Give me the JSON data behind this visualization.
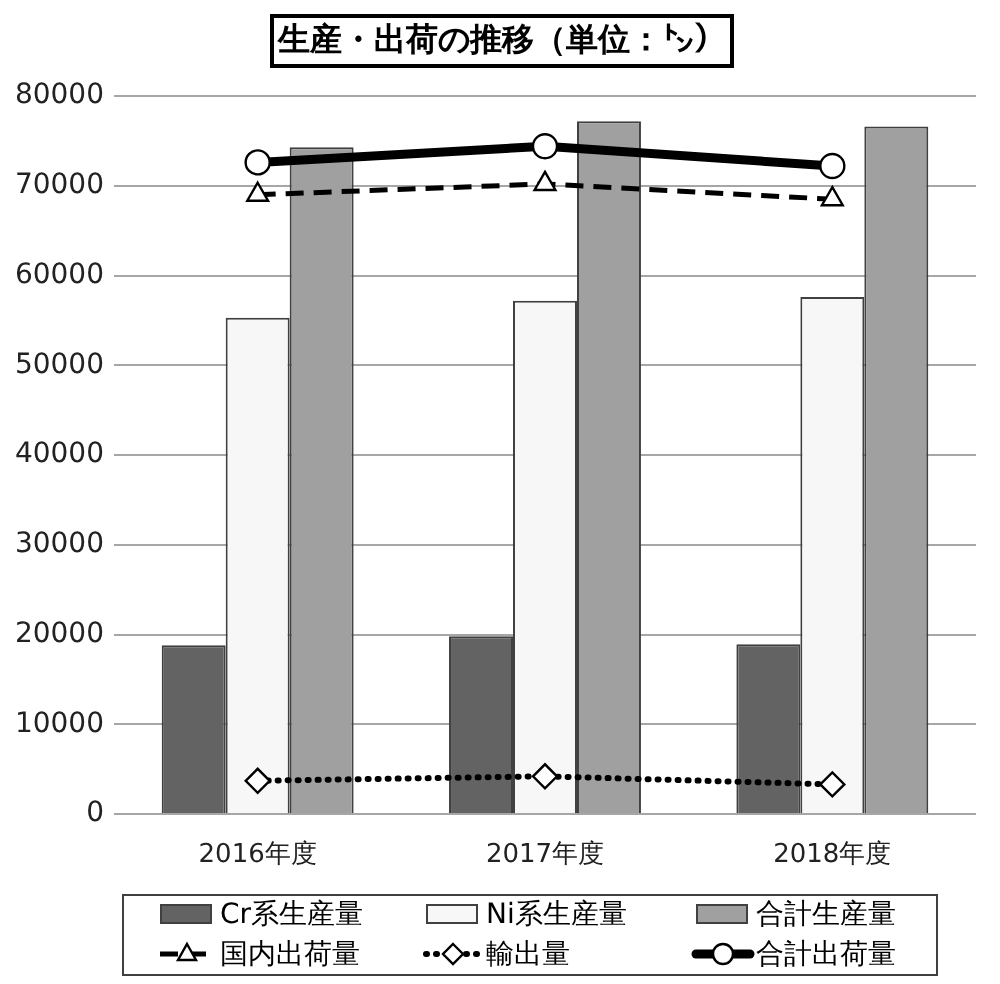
{
  "chart_data": {
    "type": "bar",
    "title": "生産・出荷の推移（単位：㌧）",
    "categories": [
      "2016年度",
      "2017年度",
      "2018年度"
    ],
    "series": [
      {
        "name": "Cr系生産量",
        "color": "#636363",
        "values": [
          18800,
          19800,
          18900
        ]
      },
      {
        "name": "Ni系生産量",
        "color": "#f7f7f7",
        "values": [
          55300,
          57200,
          57600
        ]
      },
      {
        "name": "合計生産量",
        "color": "#a0a0a0",
        "values": [
          74300,
          77200,
          76600
        ]
      },
      {
        "name": "国内出荷量",
        "type": "line",
        "color": "#000000",
        "marker": "triangle",
        "line_style": "dashed",
        "values": [
          69000,
          70200,
          68500
        ]
      },
      {
        "name": "輸出量",
        "type": "line",
        "color": "#000000",
        "marker": "diamond",
        "line_style": "dotted",
        "values": [
          3700,
          4200,
          3300
        ]
      },
      {
        "name": "合計出荷量",
        "type": "line",
        "color": "#000000",
        "marker": "circle",
        "line_style": "solid",
        "values": [
          72600,
          74400,
          72200
        ]
      }
    ],
    "ylim": [
      0,
      80000
    ],
    "yticks": [
      0,
      10000,
      20000,
      30000,
      40000,
      50000,
      60000,
      70000,
      80000
    ],
    "grid": "y",
    "legend": "bottom"
  }
}
